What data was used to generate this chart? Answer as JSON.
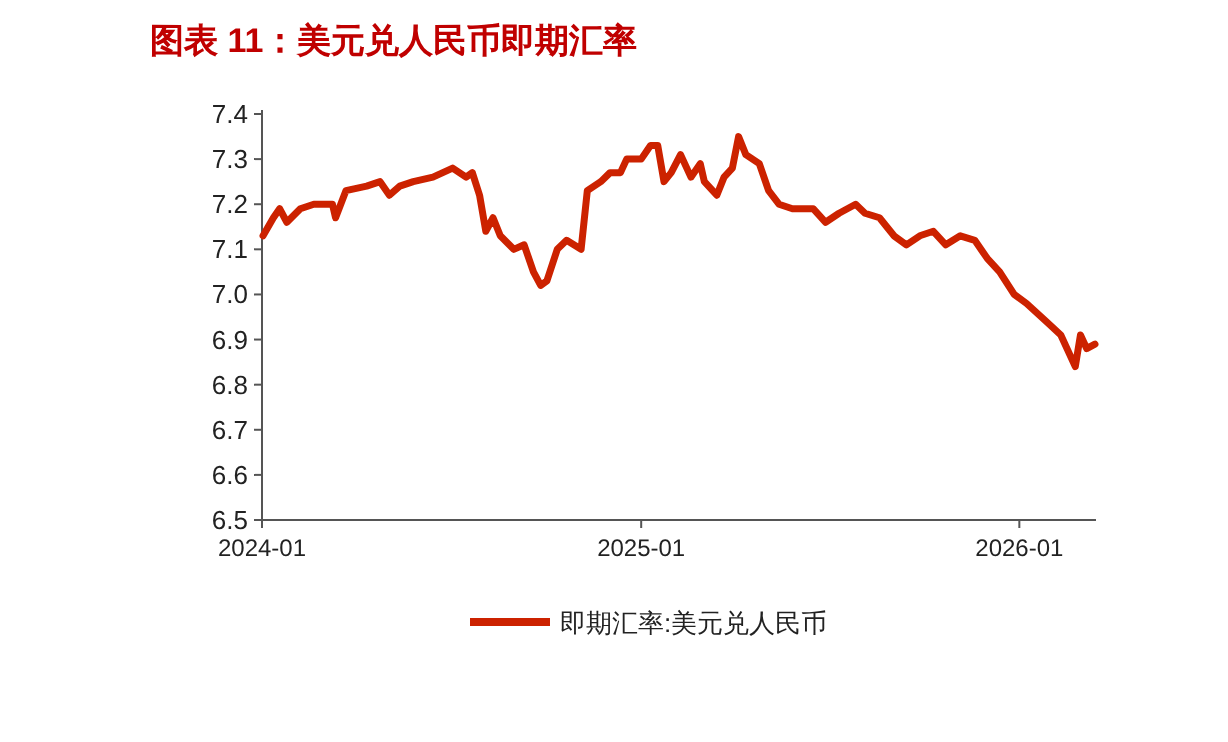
{
  "chart_data": {
    "type": "line",
    "title": "图表 11：美元兑人民币即期汇率",
    "x": [
      "2024-01-02",
      "2024-01-12",
      "2024-01-18",
      "2024-01-25",
      "2024-02-07",
      "2024-02-20",
      "2024-03-09",
      "2024-03-12",
      "2024-03-22",
      "2024-04-11",
      "2024-04-24",
      "2024-05-03",
      "2024-05-13",
      "2024-05-26",
      "2024-06-14",
      "2024-07-03",
      "2024-07-16",
      "2024-07-22",
      "2024-07-29",
      "2024-08-04",
      "2024-08-11",
      "2024-08-18",
      "2024-08-31",
      "2024-09-10",
      "2024-09-19",
      "2024-09-26",
      "2024-10-02",
      "2024-10-12",
      "2024-10-21",
      "2024-11-04",
      "2024-11-10",
      "2024-11-23",
      "2024-12-02",
      "2024-12-12",
      "2024-12-18",
      "2025-01-01",
      "2025-01-10",
      "2025-01-17",
      "2025-01-23",
      "2025-01-30",
      "2025-02-08",
      "2025-02-18",
      "2025-02-27",
      "2025-03-03",
      "2025-03-15",
      "2025-03-22",
      "2025-03-30",
      "2025-04-05",
      "2025-04-12",
      "2025-04-25",
      "2025-05-04",
      "2025-05-14",
      "2025-05-27",
      "2025-06-16",
      "2025-06-28",
      "2025-07-11",
      "2025-07-27",
      "2025-08-05",
      "2025-08-19",
      "2025-09-02",
      "2025-09-14",
      "2025-09-27",
      "2025-10-10",
      "2025-10-22",
      "2025-11-05",
      "2025-11-19",
      "2025-12-01",
      "2025-12-13",
      "2025-12-27",
      "2026-01-08",
      "2026-01-27",
      "2026-02-10",
      "2026-02-24",
      "2026-03-01",
      "2026-03-07",
      "2026-03-15"
    ],
    "series": [
      {
        "name": "即期汇率:美元兑人民币",
        "color": "#cc2200",
        "values": [
          7.13,
          7.17,
          7.19,
          7.16,
          7.19,
          7.2,
          7.2,
          7.17,
          7.23,
          7.24,
          7.25,
          7.22,
          7.24,
          7.25,
          7.26,
          7.28,
          7.26,
          7.27,
          7.22,
          7.14,
          7.17,
          7.13,
          7.1,
          7.11,
          7.05,
          7.02,
          7.03,
          7.1,
          7.12,
          7.1,
          7.23,
          7.25,
          7.27,
          7.27,
          7.3,
          7.3,
          7.33,
          7.33,
          7.25,
          7.27,
          7.31,
          7.26,
          7.29,
          7.25,
          7.22,
          7.26,
          7.28,
          7.35,
          7.31,
          7.29,
          7.23,
          7.2,
          7.19,
          7.19,
          7.16,
          7.18,
          7.2,
          7.18,
          7.17,
          7.13,
          7.11,
          7.13,
          7.14,
          7.11,
          7.13,
          7.12,
          7.08,
          7.05,
          7.0,
          6.98,
          6.94,
          6.91,
          6.84,
          6.91,
          6.88,
          6.89
        ]
      }
    ],
    "xlim": [
      "2024-01-01",
      "2026-03-16"
    ],
    "xticks": [
      {
        "value": "2024-01-01",
        "label": "2024-01"
      },
      {
        "value": "2025-01-01",
        "label": "2025-01"
      },
      {
        "value": "2026-01-01",
        "label": "2026-01"
      }
    ],
    "ylim": [
      6.5,
      7.4
    ],
    "yticks": [
      {
        "value": 6.5,
        "label": "6.5"
      },
      {
        "value": 6.6,
        "label": "6.6"
      },
      {
        "value": 6.7,
        "label": "6.7"
      },
      {
        "value": 6.8,
        "label": "6.8"
      },
      {
        "value": 6.9,
        "label": "6.9"
      },
      {
        "value": 7.0,
        "label": "7.0"
      },
      {
        "value": 7.1,
        "label": "7.1"
      },
      {
        "value": 7.2,
        "label": "7.2"
      },
      {
        "value": 7.3,
        "label": "7.3"
      },
      {
        "value": 7.4,
        "label": "7.4"
      }
    ],
    "grid": false,
    "legend": "bottom",
    "marker": "none",
    "line_style": "solid"
  }
}
